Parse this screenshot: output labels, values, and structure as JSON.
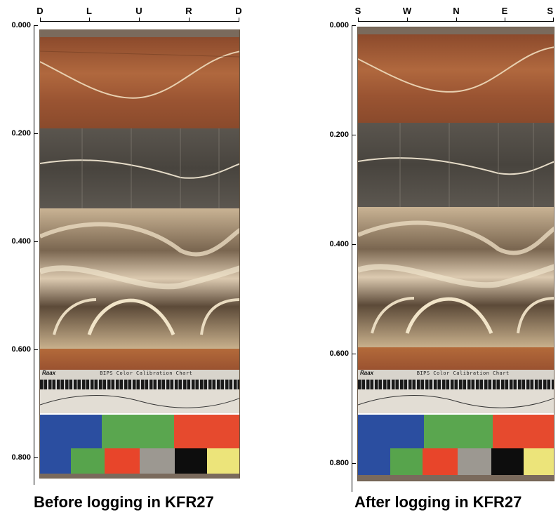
{
  "panels": [
    {
      "id": "before",
      "caption": "Before logging in KFR27",
      "compass_labels": [
        "D",
        "L",
        "U",
        "R",
        "D"
      ],
      "depth_ticks": [
        "0.000",
        "0.200",
        "0.400",
        "0.600",
        "0.800"
      ]
    },
    {
      "id": "after",
      "caption": "After logging in KFR27",
      "compass_labels": [
        "S",
        "W",
        "N",
        "E",
        "S"
      ],
      "depth_ticks": [
        "0.000",
        "0.200",
        "0.400",
        "0.600",
        "0.800"
      ]
    }
  ],
  "calibration": {
    "brand": "Raax",
    "title_before": "BIPS Color Calibration Chart",
    "title_after": "BIPS Color Calibration Chart"
  },
  "colors": {
    "upper_core": "#a05a36",
    "gray_band": "#585249",
    "pale_bands": "#d9c8aa",
    "swatch_blue": "#2b4ea0",
    "swatch_green": "#57a44c",
    "swatch_red": "#e64a2e",
    "swatch_gray": "#9a968f",
    "swatch_black": "#0d0d0d",
    "swatch_yellow": "#ece47a"
  }
}
